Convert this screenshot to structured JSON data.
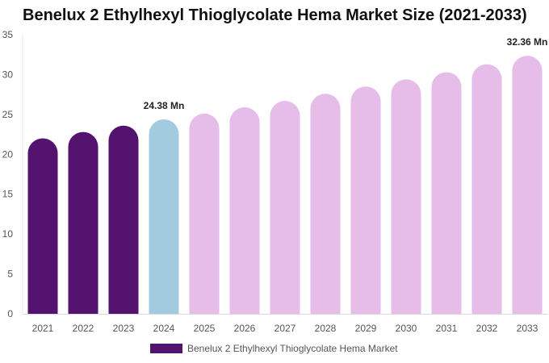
{
  "chart_data": {
    "type": "bar",
    "title": "Benelux 2 Ethylhexyl Thioglycolate Hema Market Size (2021-2033)",
    "categories": [
      "2021",
      "2022",
      "2023",
      "2024",
      "2025",
      "2026",
      "2027",
      "2028",
      "2029",
      "2030",
      "2031",
      "2032",
      "2033"
    ],
    "series": [
      {
        "name": "Benelux 2 Ethylhexyl Thioglycolate Hema Market",
        "values": [
          22.0,
          22.8,
          23.6,
          24.38,
          25.1,
          25.9,
          26.7,
          27.6,
          28.5,
          29.4,
          30.3,
          31.3,
          32.36
        ]
      }
    ],
    "data_labels": [
      {
        "category": "2024",
        "text": "24.38 Mn"
      },
      {
        "category": "2033",
        "text": "32.36 Mn"
      }
    ],
    "ylim": [
      0,
      35
    ],
    "yticks": [
      0,
      5,
      10,
      15,
      20,
      25,
      30,
      35
    ],
    "grid": false,
    "legend_position": "bottom",
    "colors": {
      "historical": "#54126f",
      "base_year": "#a3cbe0",
      "forecast": "#e6bde9",
      "legend": "#54126f"
    },
    "color_by_category": [
      "historical",
      "historical",
      "historical",
      "base_year",
      "forecast",
      "forecast",
      "forecast",
      "forecast",
      "forecast",
      "forecast",
      "forecast",
      "forecast",
      "forecast"
    ]
  }
}
